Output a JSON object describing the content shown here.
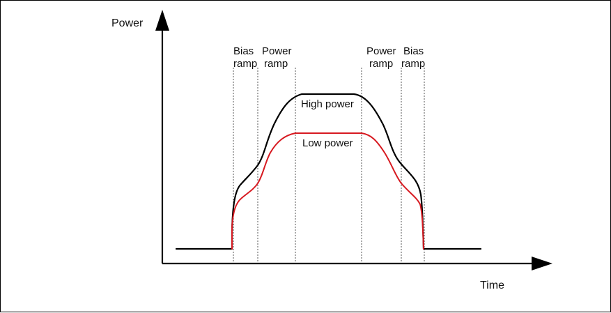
{
  "axes": {
    "y_label": "Power",
    "x_label": "Time"
  },
  "phases": {
    "left_bias": [
      "Bias",
      "ramp"
    ],
    "left_power": [
      "Power",
      "ramp"
    ],
    "right_power": [
      "Power",
      "ramp"
    ],
    "right_bias": [
      "Bias",
      "ramp"
    ]
  },
  "curves": {
    "high": "High power",
    "low": "Low power"
  },
  "colors": {
    "high": "#000000",
    "low": "#d71920",
    "guides": "#555555"
  }
}
